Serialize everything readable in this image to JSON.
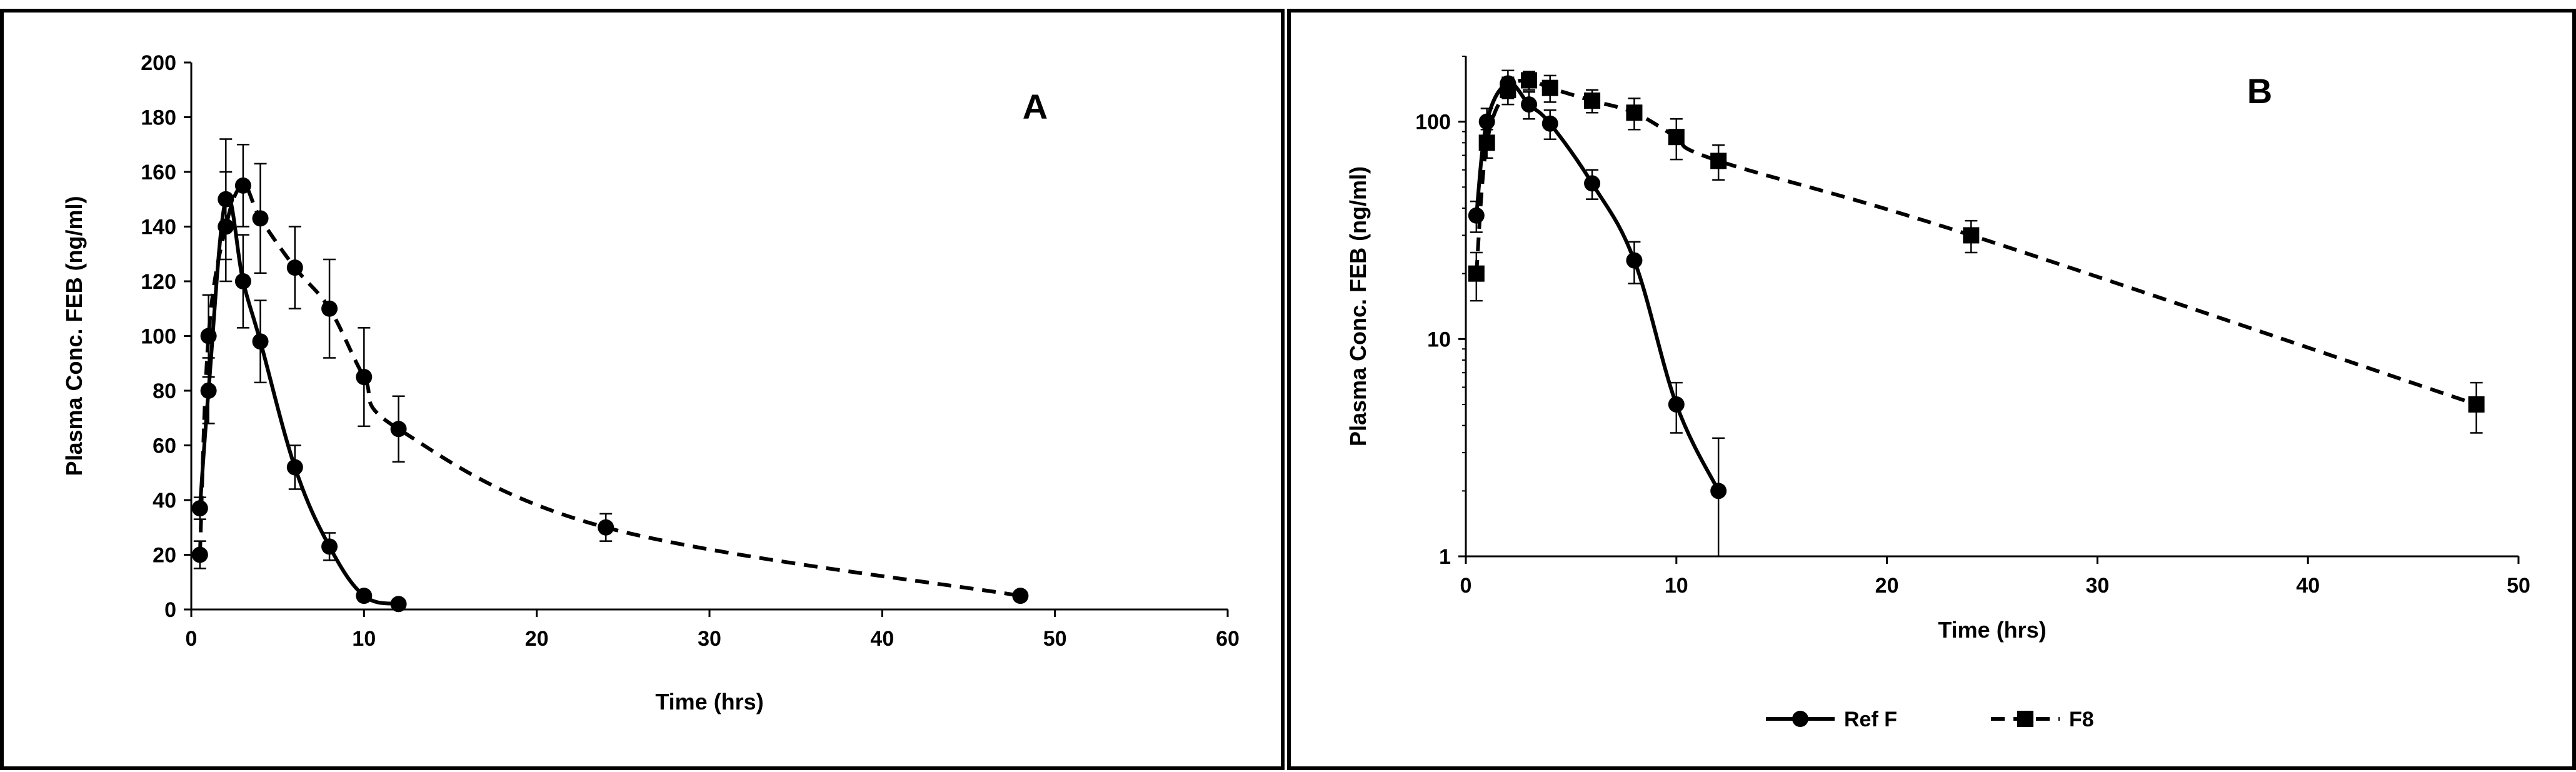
{
  "chart_data": [
    {
      "panel": "A",
      "type": "line",
      "scale": "linear",
      "ylabel": "Plasma Conc. FEB (ng/ml)",
      "xlabel": "Time (hrs)",
      "xlim": [
        0,
        60
      ],
      "ylim": [
        0,
        200
      ],
      "xticks": [
        "0",
        "10",
        "20",
        "30",
        "40",
        "50",
        "60"
      ],
      "yticks": [
        "0",
        "20",
        "40",
        "60",
        "80",
        "100",
        "120",
        "140",
        "160",
        "180",
        "200"
      ],
      "grid": false,
      "legend": "none",
      "series": [
        {
          "style": "solid",
          "marker": "circle",
          "x": [
            0.5,
            1,
            2,
            3,
            4,
            6,
            8,
            10,
            12
          ],
          "y": [
            37,
            80,
            150,
            120,
            98,
            52,
            23,
            5,
            2
          ],
          "err": [
            4,
            12,
            22,
            17,
            15,
            8,
            5,
            1,
            1
          ]
        },
        {
          "style": "dashed",
          "marker": "circle",
          "x": [
            0.5,
            1,
            2,
            3,
            4,
            6,
            8,
            10,
            12,
            24,
            48
          ],
          "y": [
            20,
            100,
            140,
            155,
            143,
            125,
            110,
            85,
            66,
            30,
            5
          ],
          "err": [
            5,
            15,
            20,
            15,
            20,
            15,
            18,
            18,
            12,
            5,
            1
          ]
        }
      ]
    },
    {
      "panel": "B",
      "type": "line",
      "scale": "log",
      "ylabel": "Plasma Conc. FEB (ng/ml)",
      "xlabel": "Time (hrs)",
      "xlim": [
        0,
        50
      ],
      "ylim": [
        1,
        200
      ],
      "xticks": [
        "0",
        "10",
        "20",
        "30",
        "40",
        "50"
      ],
      "yticks": [
        "1",
        "10",
        "100"
      ],
      "grid": false,
      "legend": "bottom-center",
      "series": [
        {
          "name": "Ref F",
          "style": "solid",
          "marker": "circle",
          "x": [
            0.5,
            1,
            2,
            3,
            4,
            6,
            8,
            10,
            12
          ],
          "y": [
            37,
            100,
            150,
            120,
            98,
            52,
            23,
            5,
            2
          ],
          "err": [
            6,
            15,
            22,
            17,
            15,
            8,
            5,
            1.3,
            1.5
          ]
        },
        {
          "name": "F8",
          "style": "dashed",
          "marker": "square",
          "x": [
            0.5,
            1,
            2,
            3,
            4,
            6,
            8,
            10,
            12,
            24,
            48
          ],
          "y": [
            20,
            80,
            140,
            155,
            143,
            125,
            110,
            85,
            66,
            30,
            5
          ],
          "err": [
            5,
            12,
            20,
            15,
            20,
            15,
            18,
            18,
            12,
            5,
            1.3
          ]
        }
      ]
    }
  ]
}
